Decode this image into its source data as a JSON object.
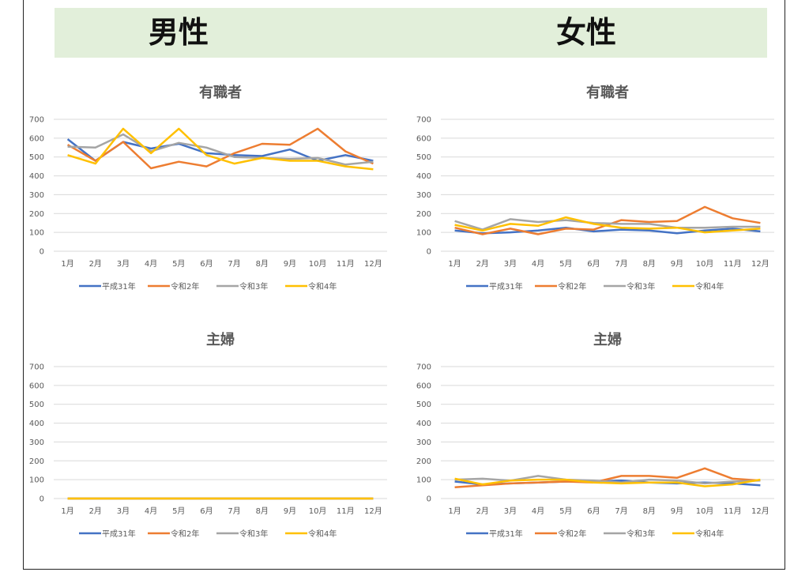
{
  "header": {
    "male_label": "男性",
    "female_label": "女性"
  },
  "colors": {
    "banner_bg": "#e2efda",
    "series": [
      "#4472c4",
      "#ed7d31",
      "#a5a5a5",
      "#ffc000"
    ]
  },
  "chart_data": [
    {
      "id": "male-employed",
      "type": "line",
      "title": "有職者",
      "categories": [
        "1月",
        "2月",
        "3月",
        "4月",
        "5月",
        "6月",
        "7月",
        "8月",
        "9月",
        "10月",
        "11月",
        "12月"
      ],
      "ylim": [
        0,
        700
      ],
      "yticks": [
        0,
        100,
        200,
        300,
        400,
        500,
        600,
        700
      ],
      "grid": true,
      "legend_position": "bottom",
      "series": [
        {
          "name": "平成31年",
          "values": [
            595,
            480,
            580,
            545,
            570,
            520,
            510,
            505,
            540,
            480,
            510,
            480
          ]
        },
        {
          "name": "令和2年",
          "values": [
            565,
            480,
            580,
            440,
            475,
            450,
            520,
            570,
            565,
            650,
            530,
            465
          ]
        },
        {
          "name": "令和3年",
          "values": [
            555,
            550,
            620,
            530,
            575,
            550,
            500,
            495,
            490,
            495,
            460,
            475
          ]
        },
        {
          "name": "令和4年",
          "values": [
            510,
            465,
            650,
            520,
            650,
            510,
            465,
            495,
            480,
            480,
            450,
            435
          ]
        }
      ]
    },
    {
      "id": "female-employed",
      "type": "line",
      "title": "有職者",
      "categories": [
        "1月",
        "2月",
        "3月",
        "4月",
        "5月",
        "6月",
        "7月",
        "8月",
        "9月",
        "10月",
        "11月",
        "12月"
      ],
      "ylim": [
        0,
        700
      ],
      "yticks": [
        0,
        100,
        200,
        300,
        400,
        500,
        600,
        700
      ],
      "grid": true,
      "legend_position": "bottom",
      "series": [
        {
          "name": "平成31年",
          "values": [
            110,
            95,
            100,
            110,
            125,
            105,
            115,
            110,
            95,
            110,
            120,
            105
          ]
        },
        {
          "name": "令和2年",
          "values": [
            125,
            90,
            120,
            90,
            120,
            115,
            165,
            155,
            160,
            235,
            175,
            150
          ]
        },
        {
          "name": "令和3年",
          "values": [
            160,
            115,
            170,
            155,
            165,
            150,
            145,
            145,
            125,
            125,
            130,
            130
          ]
        },
        {
          "name": "令和4年",
          "values": [
            140,
            110,
            145,
            135,
            180,
            145,
            125,
            120,
            125,
            100,
            110,
            120
          ]
        }
      ]
    },
    {
      "id": "male-housewife",
      "type": "line",
      "title": "主婦",
      "categories": [
        "1月",
        "2月",
        "3月",
        "4月",
        "5月",
        "6月",
        "7月",
        "8月",
        "9月",
        "10月",
        "11月",
        "12月"
      ],
      "ylim": [
        0,
        700
      ],
      "yticks": [
        0,
        100,
        200,
        300,
        400,
        500,
        600,
        700
      ],
      "grid": true,
      "legend_position": "bottom",
      "series": [
        {
          "name": "平成31年",
          "values": [
            0,
            0,
            0,
            0,
            0,
            0,
            0,
            0,
            0,
            0,
            0,
            0
          ]
        },
        {
          "name": "令和2年",
          "values": [
            0,
            0,
            0,
            0,
            0,
            0,
            0,
            0,
            0,
            0,
            0,
            0
          ]
        },
        {
          "name": "令和3年",
          "values": [
            0,
            0,
            0,
            0,
            0,
            0,
            0,
            0,
            0,
            0,
            0,
            0
          ]
        },
        {
          "name": "令和4年",
          "values": [
            0,
            0,
            0,
            0,
            0,
            0,
            0,
            0,
            0,
            0,
            0,
            0
          ]
        }
      ]
    },
    {
      "id": "female-housewife",
      "type": "line",
      "title": "主婦",
      "categories": [
        "1月",
        "2月",
        "3月",
        "4月",
        "5月",
        "6月",
        "7月",
        "8月",
        "9月",
        "10月",
        "11月",
        "12月"
      ],
      "ylim": [
        0,
        700
      ],
      "yticks": [
        0,
        100,
        200,
        300,
        400,
        500,
        600,
        700
      ],
      "grid": true,
      "legend_position": "bottom",
      "series": [
        {
          "name": "平成31年",
          "values": [
            90,
            75,
            80,
            85,
            90,
            90,
            95,
            85,
            80,
            85,
            80,
            70
          ]
        },
        {
          "name": "令和2年",
          "values": [
            60,
            70,
            80,
            85,
            90,
            85,
            120,
            120,
            110,
            160,
            105,
            95
          ]
        },
        {
          "name": "令和3年",
          "values": [
            100,
            105,
            95,
            120,
            100,
            95,
            85,
            100,
            95,
            80,
            90,
            95
          ]
        },
        {
          "name": "令和4年",
          "values": [
            105,
            75,
            95,
            100,
            100,
            85,
            80,
            85,
            85,
            65,
            75,
            100
          ]
        }
      ]
    }
  ]
}
